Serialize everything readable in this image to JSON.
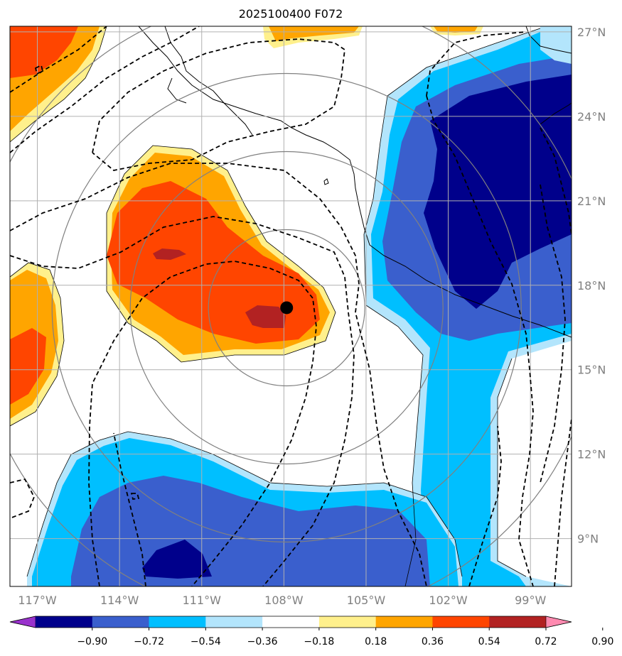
{
  "title": "2025100400 F072",
  "map": {
    "lon_range": [
      -118.0,
      -97.5
    ],
    "lat_range": [
      7.3,
      27.2
    ],
    "lon_ticks": [
      {
        "value": -117,
        "label": "117°W"
      },
      {
        "value": -114,
        "label": "114°W"
      },
      {
        "value": -111,
        "label": "111°W"
      },
      {
        "value": -108,
        "label": "108°W"
      },
      {
        "value": -105,
        "label": "105°W"
      },
      {
        "value": -102,
        "label": "102°W"
      },
      {
        "value": -99,
        "label": "99°W"
      }
    ],
    "lat_ticks": [
      {
        "value": 9,
        "label": "9°N"
      },
      {
        "value": 12,
        "label": "12°N"
      },
      {
        "value": 15,
        "label": "15°N"
      },
      {
        "value": 18,
        "label": "18°N"
      },
      {
        "value": 21,
        "label": "21°N"
      },
      {
        "value": 24,
        "label": "24°N"
      },
      {
        "value": 27,
        "label": "27°N"
      }
    ],
    "storm_center": {
      "lon": -107.9,
      "lat": 17.2
    },
    "range_ring_count": 4,
    "colors": {
      "c_n090": "#00008b",
      "c_n072": "#3a5fcd",
      "c_n054": "#00bfff",
      "c_n036": "#b3e5fc",
      "c_p036": "#fff08c",
      "c_p054": "#ffa500",
      "c_p072": "#ff4500",
      "c_p090": "#b22222",
      "under": "#9932cc",
      "over": "#ff8ab0",
      "neutral": "#ffffff",
      "grid": "#b0b0b0",
      "ring": "#808080",
      "coast": "#000000",
      "contour": "#000000"
    }
  },
  "colorbar": {
    "levels": [
      -0.9,
      -0.72,
      -0.54,
      -0.36,
      -0.18,
      0.18,
      0.36,
      0.54,
      0.72,
      0.9
    ],
    "tick_labels": [
      "−0.90",
      "−0.72",
      "−0.54",
      "−0.36",
      "−0.18",
      "0.18",
      "0.36",
      "0.54",
      "0.72",
      "0.90"
    ],
    "colors": [
      "#9932cc",
      "#00008b",
      "#3a5fcd",
      "#00bfff",
      "#b3e5fc",
      "#ffffff",
      "#fff08c",
      "#ffa500",
      "#ff4500",
      "#b22222",
      "#ff8ab0"
    ]
  }
}
